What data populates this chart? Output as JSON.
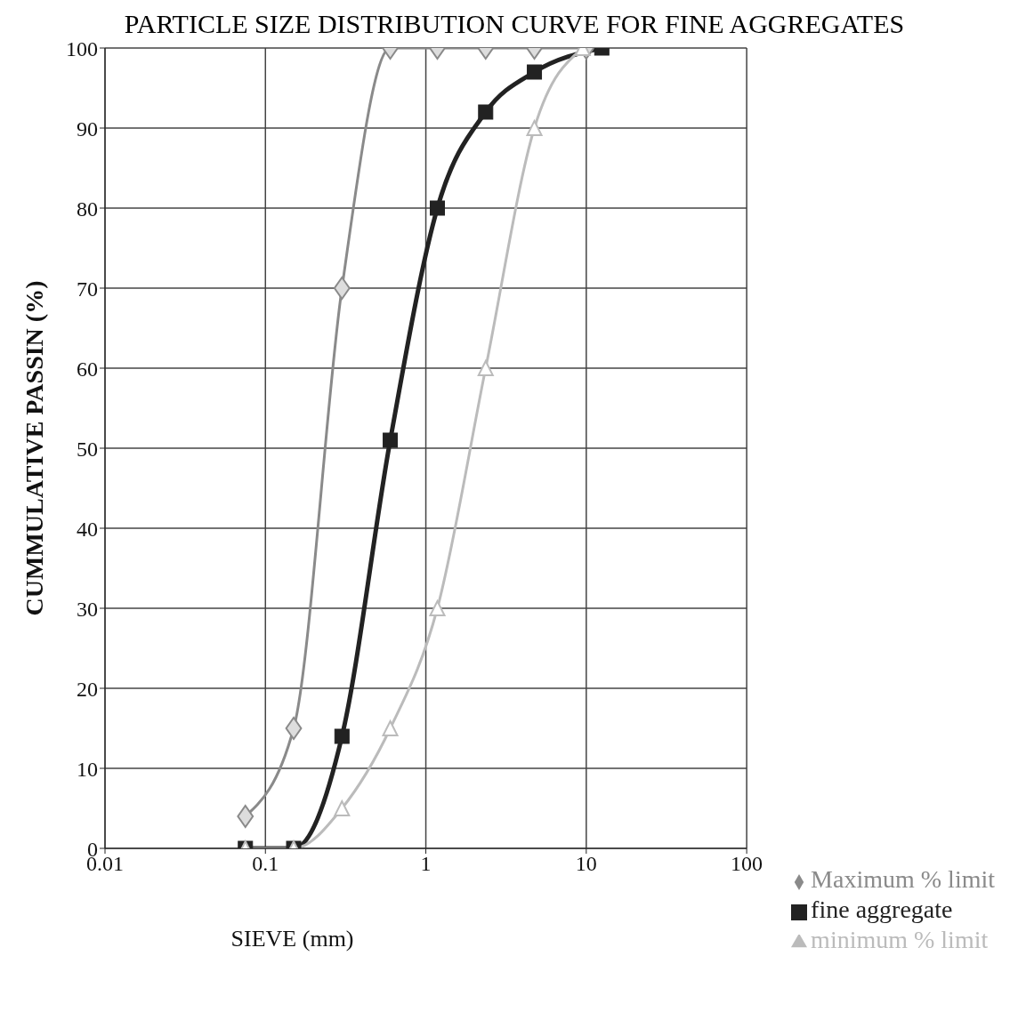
{
  "chart_data": {
    "type": "line",
    "title": "PARTICLE SIZE DISTRIBUTION CURVE FOR FINE AGGREGATES",
    "xlabel": "SIEVE (mm)",
    "ylabel": "CUMMULATIVE PASSIN (%)",
    "log": "x",
    "grid": true,
    "legend": "bottom right",
    "line_style": "solid",
    "xlim": [
      0.01,
      100
    ],
    "xticks": [
      0.01,
      0.1,
      1,
      10,
      100
    ],
    "ylim": [
      0,
      100
    ],
    "yticks": [
      0,
      10,
      20,
      30,
      40,
      50,
      60,
      70,
      80,
      90,
      100
    ],
    "series": [
      {
        "name": "Maximum % limit",
        "color": "#8a8a8a",
        "marker": "diamond",
        "x": [
          0.075,
          0.15,
          0.3,
          0.6,
          1.18,
          2.36,
          4.75,
          10
        ],
        "values": [
          4,
          15,
          70,
          100,
          100,
          100,
          100,
          100
        ]
      },
      {
        "name": "fine aggregate",
        "color": "#222222",
        "marker": "square",
        "x": [
          0.075,
          0.15,
          0.3,
          0.6,
          1.18,
          2.36,
          4.75,
          12.5
        ],
        "values": [
          0,
          0,
          14,
          51,
          80,
          92,
          97,
          100
        ]
      },
      {
        "name": "minimum % limit",
        "color": "#bbbbbb",
        "marker": "triangle",
        "x": [
          0.075,
          0.15,
          0.3,
          0.6,
          1.18,
          2.36,
          4.75,
          9.5
        ],
        "values": [
          0,
          0,
          5,
          15,
          30,
          60,
          90,
          100
        ]
      }
    ]
  }
}
